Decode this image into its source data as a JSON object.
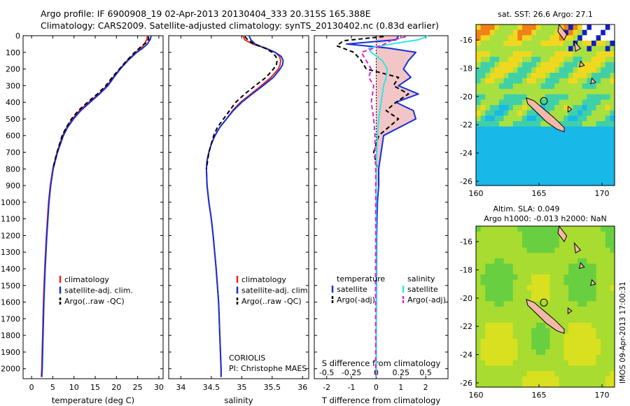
{
  "header": {
    "title_line1": "Argo profile: IF 6900908_19 02-Apr-2013 20130404_333 20.315S 165.388E",
    "title_line2": "Climatology: CARS2009. Satellite-adjusted climatology: synTS_20130402.nc (0.83d earlier)"
  },
  "colors": {
    "climatology": "#e8281e",
    "satellite": "#1530d8",
    "argo": "#000000",
    "satellite_s": "#30e6e6",
    "argo_s": "#e020d8",
    "fill": "#f2c6c6"
  },
  "depth_ticks": [
    0,
    100,
    200,
    300,
    400,
    500,
    600,
    700,
    800,
    900,
    1000,
    1100,
    1200,
    1300,
    1400,
    1500,
    1600,
    1700,
    1800,
    1900,
    2000
  ],
  "chart_data": [
    {
      "type": "line",
      "id": "temperature",
      "xlabel": "temperature (deg C)",
      "xlim": [
        -2,
        31
      ],
      "xticks": [
        0,
        5,
        10,
        15,
        20,
        25,
        30
      ],
      "ylim": [
        0,
        2060
      ],
      "y_reversed": true,
      "legend": [
        "climatology",
        "satellite-adj. clim.",
        "Argo(..raw -QC)"
      ],
      "series": [
        {
          "name": "climatology",
          "color": "#e8281e",
          "depth": [
            0,
            20,
            50,
            75,
            100,
            150,
            200,
            250,
            300,
            350,
            400,
            450,
            500,
            550,
            600,
            700,
            800,
            900,
            1000,
            1200,
            1400,
            1600,
            1800,
            2000,
            2050
          ],
          "values": [
            27.3,
            27.2,
            26.6,
            25.8,
            24.6,
            22.5,
            20.8,
            19.2,
            17.8,
            15.8,
            13.5,
            11.3,
            9.6,
            8.3,
            7.3,
            6.0,
            5.0,
            4.4,
            4.0,
            3.5,
            3.1,
            2.8,
            2.6,
            2.4,
            2.3
          ]
        },
        {
          "name": "satellite-adj. clim.",
          "color": "#1530d8",
          "depth": [
            0,
            20,
            50,
            75,
            100,
            150,
            200,
            250,
            300,
            350,
            400,
            450,
            500,
            550,
            600,
            700,
            800,
            900,
            1000,
            1200,
            1400,
            1600,
            1800,
            2000,
            2050
          ],
          "values": [
            28.2,
            28.0,
            27.3,
            26.2,
            24.8,
            22.7,
            20.9,
            19.4,
            18.0,
            16.0,
            13.8,
            11.6,
            9.9,
            8.5,
            7.5,
            6.1,
            5.1,
            4.5,
            4.1,
            3.6,
            3.2,
            2.9,
            2.7,
            2.5,
            2.4
          ]
        },
        {
          "name": "Argo(..raw -QC)",
          "color": "#000000",
          "dashed": true,
          "depth": [
            5,
            20,
            40,
            60,
            80,
            100,
            150,
            200,
            250,
            300,
            350,
            400,
            450,
            500,
            550,
            600,
            700,
            800
          ],
          "values": [
            27.5,
            27.6,
            27.2,
            26.0,
            25.2,
            24.3,
            22.4,
            20.7,
            19.0,
            17.5,
            15.5,
            13.2,
            11.0,
            9.4,
            8.2,
            7.2,
            6.0,
            5.0
          ]
        }
      ]
    },
    {
      "type": "line",
      "id": "salinity",
      "xlabel": "salinity",
      "xlim": [
        33.8,
        36.1
      ],
      "xticks": [
        34,
        34.5,
        35,
        35.5,
        36
      ],
      "ylim": [
        0,
        2060
      ],
      "y_reversed": true,
      "legend": [
        "climatology",
        "satellite-adj. clim.",
        "Argo(..raw -QC)"
      ],
      "annotations": [
        "CORIOLIS",
        "PI: Christophe MAES"
      ],
      "series": [
        {
          "name": "climatology",
          "color": "#e8281e",
          "depth": [
            0,
            25,
            50,
            75,
            100,
            125,
            150,
            175,
            200,
            250,
            300,
            350,
            400,
            450,
            500,
            550,
            600,
            650,
            700,
            750,
            800,
            900,
            1000,
            1100,
            1200,
            1400,
            1600,
            1800,
            2000,
            2050
          ],
          "values": [
            35.02,
            35.05,
            35.18,
            35.4,
            35.55,
            35.62,
            35.64,
            35.63,
            35.6,
            35.48,
            35.32,
            35.15,
            34.98,
            34.85,
            34.75,
            34.64,
            34.56,
            34.5,
            34.46,
            34.43,
            34.42,
            34.43,
            34.46,
            34.5,
            34.53,
            34.58,
            34.62,
            34.64,
            34.66,
            34.66
          ]
        },
        {
          "name": "satellite-adj. clim.",
          "color": "#1530d8",
          "depth": [
            0,
            25,
            50,
            75,
            100,
            125,
            150,
            175,
            200,
            250,
            300,
            350,
            400,
            450,
            500,
            550,
            600,
            650,
            700,
            750,
            800,
            900,
            1000,
            1100,
            1200,
            1400,
            1600,
            1800,
            2000,
            2050
          ],
          "values": [
            35.12,
            35.15,
            35.22,
            35.38,
            35.55,
            35.65,
            35.68,
            35.67,
            35.63,
            35.52,
            35.35,
            35.17,
            35.0,
            34.86,
            34.75,
            34.64,
            34.56,
            34.5,
            34.46,
            34.43,
            34.42,
            34.43,
            34.46,
            34.5,
            34.53,
            34.58,
            34.62,
            34.64,
            34.66,
            34.66
          ]
        },
        {
          "name": "Argo(..raw -QC)",
          "color": "#000000",
          "dashed": true,
          "depth": [
            5,
            25,
            50,
            75,
            100,
            125,
            150,
            175,
            200,
            250,
            300,
            350,
            400,
            450,
            500,
            550,
            600,
            700,
            800
          ],
          "values": [
            35.05,
            35.1,
            35.2,
            35.38,
            35.5,
            35.56,
            35.58,
            35.57,
            35.52,
            35.4,
            35.22,
            35.05,
            34.9,
            34.8,
            34.7,
            34.6,
            34.54,
            34.46,
            34.42
          ]
        }
      ]
    },
    {
      "type": "line",
      "id": "difference",
      "xlabel": "T difference from climatology",
      "xlabel_top": "S difference from climatology",
      "xlim_T": [
        -2.5,
        2.9
      ],
      "xticks_T": [
        -2,
        -1,
        0,
        1,
        2
      ],
      "xticks_S": [
        "-0.5",
        "-0.25",
        "0",
        "0.25",
        "0.5"
      ],
      "ylim": [
        0,
        2060
      ],
      "y_reversed": true,
      "legend_headers": [
        "temperature",
        "salinity"
      ],
      "legend": [
        "satellite",
        "Argo(-adj)",
        "satellite",
        "Argo(-adj)"
      ],
      "series": [
        {
          "name": "satellite",
          "quantity": "temperature",
          "color": "#1530d8",
          "depth": [
            0,
            25,
            50,
            75,
            100,
            150,
            200,
            250,
            300,
            350,
            400,
            450,
            500,
            600,
            700,
            800,
            900,
            1000,
            1200,
            1500,
            1800,
            2050
          ],
          "values": [
            0.9,
            0.8,
            -1.2,
            0.5,
            1.6,
            1.3,
            1.1,
            1.4,
            0.9,
            1.7,
            0.8,
            1.5,
            1.6,
            0.3,
            0.2,
            0.1,
            0.1,
            0.05,
            0.02,
            0.01,
            0.0,
            0.0
          ]
        },
        {
          "name": "Argo(-adj)",
          "quantity": "temperature",
          "color": "#000000",
          "dashed": true,
          "depth": [
            5,
            30,
            60,
            100,
            150,
            200,
            250,
            300,
            350,
            400,
            450,
            500,
            550,
            600,
            700,
            800
          ],
          "values": [
            0.3,
            -1.3,
            -1.6,
            -0.9,
            -0.6,
            -0.4,
            0.9,
            0.7,
            1.3,
            0.8,
            0.4,
            0.9,
            0.5,
            0.1,
            -0.1,
            0.05
          ]
        },
        {
          "name": "satellite",
          "quantity": "salinity",
          "color": "#30e6e6",
          "depth": [
            0,
            25,
            50,
            75,
            100,
            150,
            200,
            250,
            300,
            400,
            500,
            600,
            700,
            800,
            1000,
            1200,
            1500,
            1800,
            2050
          ],
          "values": [
            2.1,
            1.7,
            0.6,
            -0.3,
            -0.2,
            0.25,
            0.45,
            0.4,
            0.3,
            0.2,
            0.1,
            0.05,
            0.02,
            0.0,
            0.0,
            0.0,
            0.0,
            0.0,
            0.0
          ]
        },
        {
          "name": "Argo(-adj)",
          "quantity": "salinity",
          "color": "#e020d8",
          "dashed": true,
          "depth": [
            5,
            30,
            60,
            100,
            150,
            200,
            250,
            300,
            400,
            500,
            600,
            700,
            800,
            1000,
            1200,
            1500,
            1800,
            2050
          ],
          "values": [
            1.2,
            0.6,
            0.2,
            -0.6,
            -0.4,
            -0.2,
            -0.3,
            -0.1,
            -0.2,
            -0.1,
            -0.05,
            -0.05,
            -0.02,
            -0.02,
            -0.02,
            -0.03,
            -0.02,
            -0.02
          ]
        }
      ]
    },
    {
      "type": "heatmap",
      "id": "sst_map",
      "title": "sat. SST: 26.6 Argo: 27.1",
      "xlim": [
        160,
        171
      ],
      "ylim": [
        -26.3,
        -14.9
      ],
      "xticks": [
        160,
        165,
        170
      ],
      "yticks": [
        -16,
        -18,
        -20,
        -22,
        -24,
        -26
      ],
      "argo_position": [
        165.388,
        -20.315
      ]
    },
    {
      "type": "heatmap",
      "id": "sla_map",
      "title_line1": "Altim. SLA: 0.049",
      "title_line2": "Argo h1000: -0.013 h2000: NaN",
      "xlim": [
        160,
        171
      ],
      "ylim": [
        -26.3,
        -14.9
      ],
      "xticks": [
        160,
        165,
        170
      ],
      "yticks": [
        -16,
        -18,
        -20,
        -22,
        -24,
        -26
      ],
      "argo_position": [
        165.388,
        -20.315
      ]
    }
  ],
  "side_label": "IMOS 09-Apr-2013 17:00:31"
}
